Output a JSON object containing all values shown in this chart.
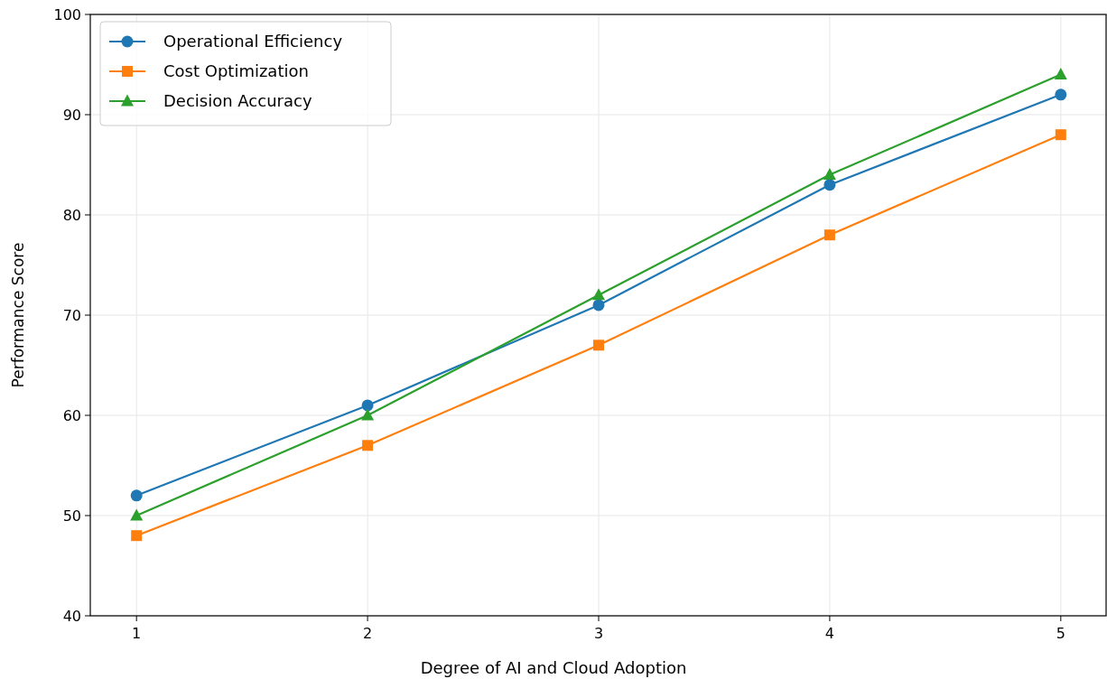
{
  "chart_data": {
    "type": "line",
    "xlabel": "Degree of AI and Cloud Adoption",
    "ylabel": "Performance Score",
    "x": [
      1,
      2,
      3,
      4,
      5
    ],
    "series": [
      {
        "name": "Operational Efficiency",
        "color": "#1f77b4",
        "marker": "circle",
        "values": [
          52,
          61,
          71,
          83,
          92
        ]
      },
      {
        "name": "Cost Optimization",
        "color": "#ff7f0e",
        "marker": "square",
        "values": [
          48,
          57,
          67,
          78,
          88
        ]
      },
      {
        "name": "Decision Accuracy",
        "color": "#2ca02c",
        "marker": "triangle",
        "values": [
          50,
          60,
          72,
          84,
          94
        ]
      }
    ],
    "xlim": [
      0.8,
      5.2
    ],
    "xticks": [
      1,
      2,
      3,
      4,
      5
    ],
    "ylim": [
      40,
      100
    ],
    "yticks": [
      40,
      50,
      60,
      70,
      80,
      90,
      100
    ],
    "grid": true,
    "legend": "top left",
    "line_style": "solid"
  }
}
